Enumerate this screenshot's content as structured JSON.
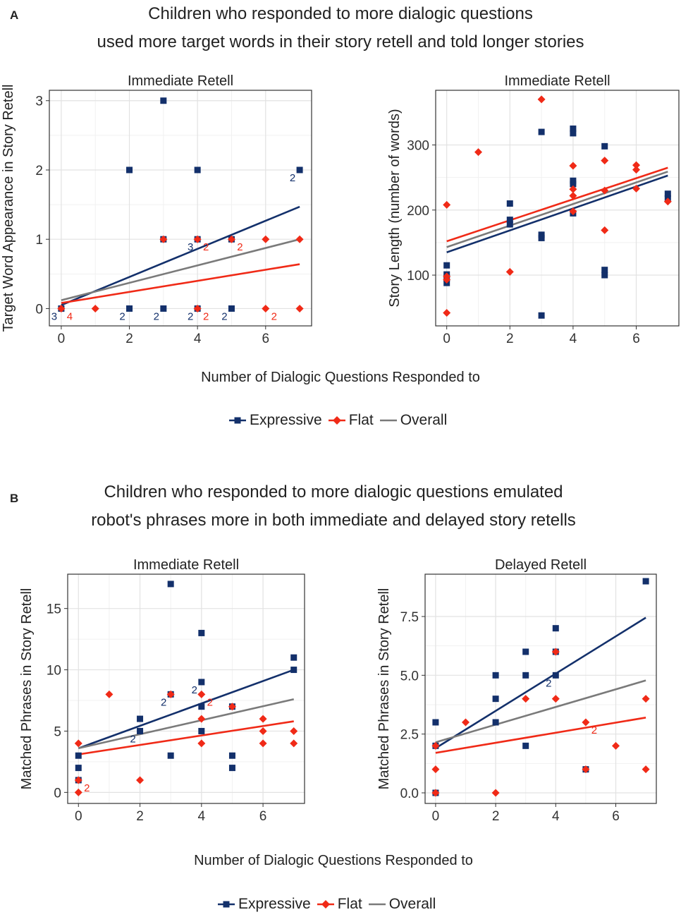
{
  "colors": {
    "expressive": "#13306b",
    "flat": "#f02a17",
    "overall": "#7a7a7a"
  },
  "panel_a": {
    "letter": "A",
    "title_line1": "Children who responded to more dialogic questions",
    "title_line2": "used more target words in their story retell and told longer stories",
    "xlabel": "Number of Dialogic Questions Responded to",
    "legend": {
      "expressive": "Expressive",
      "flat": "Flat",
      "overall": "Overall"
    }
  },
  "panel_b": {
    "letter": "B",
    "title_line1": "Children who responded to more dialogic questions emulated",
    "title_line2": "robot's phrases more in both immediate and delayed story retells",
    "xlabel": "Number of Dialogic Questions Responded to",
    "legend": {
      "expressive": "Expressive",
      "flat": "Flat",
      "overall": "Overall"
    }
  },
  "chart_data": [
    {
      "id": "a1",
      "type": "scatter",
      "title": "Immediate Retell",
      "xlabel": "",
      "ylabel": "Target Word Appearance in Story Retell",
      "xlim": [
        -0.35,
        7.35
      ],
      "ylim": [
        -0.25,
        3.15
      ],
      "xticks": [
        0,
        2,
        4,
        6
      ],
      "yticks": [
        0,
        1,
        2,
        3
      ],
      "series": [
        {
          "name": "Expressive",
          "points": [
            [
              0,
              0
            ],
            [
              2,
              0
            ],
            [
              2,
              2
            ],
            [
              3,
              3
            ],
            [
              3,
              0
            ],
            [
              3,
              1
            ],
            [
              4,
              2
            ],
            [
              4,
              1
            ],
            [
              4,
              0
            ],
            [
              5,
              1
            ],
            [
              5,
              0
            ],
            [
              7,
              2
            ]
          ]
        },
        {
          "name": "Flat",
          "points": [
            [
              0,
              0
            ],
            [
              1,
              0
            ],
            [
              3,
              1
            ],
            [
              4,
              1
            ],
            [
              4,
              0
            ],
            [
              5,
              1
            ],
            [
              6,
              1
            ],
            [
              6,
              0
            ],
            [
              7,
              1
            ],
            [
              7,
              0
            ]
          ]
        }
      ],
      "lines": [
        {
          "name": "Expressive",
          "x": [
            0,
            7
          ],
          "y": [
            0.05,
            1.47
          ]
        },
        {
          "name": "Flat",
          "x": [
            0,
            7
          ],
          "y": [
            0.08,
            0.64
          ]
        },
        {
          "name": "Overall",
          "x": [
            0,
            7
          ],
          "y": [
            0.12,
            1.0
          ]
        }
      ],
      "annotations": [
        {
          "x": 0,
          "y": 0,
          "text": "3",
          "series": "Expressive",
          "pos": "bl"
        },
        {
          "x": 0,
          "y": 0,
          "text": "4",
          "series": "Flat",
          "pos": "br"
        },
        {
          "x": 2,
          "y": 0,
          "text": "2",
          "series": "Expressive",
          "pos": "bl"
        },
        {
          "x": 3,
          "y": 0,
          "text": "2",
          "series": "Expressive",
          "pos": "bl"
        },
        {
          "x": 4,
          "y": 0,
          "text": "2",
          "series": "Expressive",
          "pos": "bl"
        },
        {
          "x": 4,
          "y": 0,
          "text": "2",
          "series": "Flat",
          "pos": "br"
        },
        {
          "x": 5,
          "y": 0,
          "text": "2",
          "series": "Expressive",
          "pos": "bl"
        },
        {
          "x": 6,
          "y": 0,
          "text": "2",
          "series": "Flat",
          "pos": "br"
        },
        {
          "x": 4,
          "y": 1,
          "text": "3",
          "series": "Expressive",
          "pos": "bl"
        },
        {
          "x": 4,
          "y": 1,
          "text": "2",
          "series": "Flat",
          "pos": "br"
        },
        {
          "x": 5,
          "y": 1,
          "text": "2",
          "series": "Flat",
          "pos": "br"
        },
        {
          "x": 7,
          "y": 2,
          "text": "2",
          "series": "Expressive",
          "pos": "bl"
        }
      ]
    },
    {
      "id": "a2",
      "type": "scatter",
      "title": "Immediate Retell",
      "xlabel": "",
      "ylabel": "Story Length (number of words)",
      "xlim": [
        -0.35,
        7.35
      ],
      "ylim": [
        22,
        384
      ],
      "xticks": [
        0,
        2,
        4,
        6
      ],
      "yticks": [
        100,
        200,
        300
      ],
      "series": [
        {
          "name": "Expressive",
          "points": [
            [
              0,
              115
            ],
            [
              0,
              101
            ],
            [
              0,
              95
            ],
            [
              0,
              88
            ],
            [
              2,
              210
            ],
            [
              2,
              185
            ],
            [
              2,
              178
            ],
            [
              3,
              320
            ],
            [
              3,
              162
            ],
            [
              3,
              157
            ],
            [
              3,
              38
            ],
            [
              4,
              325
            ],
            [
              4,
              318
            ],
            [
              4,
              245
            ],
            [
              4,
              240
            ],
            [
              4,
              195
            ],
            [
              5,
              298
            ],
            [
              5,
              108
            ],
            [
              5,
              100
            ],
            [
              7,
              225
            ],
            [
              7,
              218
            ]
          ]
        },
        {
          "name": "Flat",
          "points": [
            [
              0,
              208
            ],
            [
              0,
              98
            ],
            [
              0,
              93
            ],
            [
              0,
              42
            ],
            [
              1,
              289
            ],
            [
              2,
              105
            ],
            [
              3,
              370
            ],
            [
              4,
              268
            ],
            [
              4,
              232
            ],
            [
              4,
              222
            ],
            [
              4,
              198
            ],
            [
              5,
              276
            ],
            [
              5,
              230
            ],
            [
              5,
              169
            ],
            [
              6,
              269
            ],
            [
              6,
              262
            ],
            [
              6,
              233
            ],
            [
              7,
              213
            ]
          ]
        }
      ],
      "lines": [
        {
          "name": "Expressive",
          "x": [
            0,
            7
          ],
          "y": [
            135,
            253
          ]
        },
        {
          "name": "Flat",
          "x": [
            0,
            7
          ],
          "y": [
            152,
            265
          ]
        },
        {
          "name": "Overall",
          "x": [
            0,
            7
          ],
          "y": [
            143,
            259
          ]
        }
      ],
      "annotations": []
    },
    {
      "id": "b1",
      "type": "scatter",
      "title": "Immediate Retell",
      "xlabel": "",
      "ylabel": "Matched Phrases in Story Retell",
      "xlim": [
        -0.35,
        7.35
      ],
      "ylim": [
        -0.9,
        17.8
      ],
      "xticks": [
        0,
        2,
        4,
        6
      ],
      "yticks": [
        0,
        5,
        10,
        15
      ],
      "series": [
        {
          "name": "Expressive",
          "points": [
            [
              0,
              3
            ],
            [
              0,
              2
            ],
            [
              0,
              1
            ],
            [
              2,
              6
            ],
            [
              2,
              5
            ],
            [
              3,
              17
            ],
            [
              3,
              8
            ],
            [
              3,
              3
            ],
            [
              4,
              13
            ],
            [
              4,
              9
            ],
            [
              4,
              7
            ],
            [
              4,
              5
            ],
            [
              5,
              7
            ],
            [
              5,
              3
            ],
            [
              5,
              2
            ],
            [
              7,
              11
            ],
            [
              7,
              10
            ]
          ]
        },
        {
          "name": "Flat",
          "points": [
            [
              0,
              4
            ],
            [
              0,
              1
            ],
            [
              0,
              0
            ],
            [
              1,
              8
            ],
            [
              2,
              1
            ],
            [
              3,
              8
            ],
            [
              4,
              8
            ],
            [
              4,
              6
            ],
            [
              4,
              4
            ],
            [
              5,
              7
            ],
            [
              6,
              6
            ],
            [
              6,
              5
            ],
            [
              6,
              4
            ],
            [
              7,
              5
            ],
            [
              7,
              4
            ]
          ]
        }
      ],
      "lines": [
        {
          "name": "Expressive",
          "x": [
            0,
            7
          ],
          "y": [
            3.6,
            10.0
          ]
        },
        {
          "name": "Flat",
          "x": [
            0,
            7
          ],
          "y": [
            3.1,
            5.8
          ]
        },
        {
          "name": "Overall",
          "x": [
            0,
            7
          ],
          "y": [
            3.6,
            7.6
          ]
        }
      ],
      "annotations": [
        {
          "x": 0,
          "y": 1,
          "text": "2",
          "series": "Flat",
          "pos": "br"
        },
        {
          "x": 2,
          "y": 5,
          "text": "2",
          "series": "Expressive",
          "pos": "bl"
        },
        {
          "x": 3,
          "y": 8,
          "text": "2",
          "series": "Expressive",
          "pos": "bl"
        },
        {
          "x": 4,
          "y": 9,
          "text": "2",
          "series": "Expressive",
          "pos": "bl"
        },
        {
          "x": 4,
          "y": 8,
          "text": "2",
          "series": "Flat",
          "pos": "br"
        }
      ]
    },
    {
      "id": "b2",
      "type": "scatter",
      "title": "Delayed Retell",
      "xlabel": "",
      "ylabel": "Matched Phrases in Story Retell",
      "xlim": [
        -0.35,
        7.35
      ],
      "ylim": [
        -0.45,
        9.3
      ],
      "xticks": [
        0,
        2,
        4,
        6
      ],
      "yticks": [
        0,
        2.5,
        5,
        7.5
      ],
      "ytick_labels": [
        "0.0",
        "2.5",
        "5.0",
        "7.5"
      ],
      "series": [
        {
          "name": "Expressive",
          "points": [
            [
              0,
              3
            ],
            [
              0,
              2
            ],
            [
              0,
              0
            ],
            [
              2,
              5
            ],
            [
              2,
              4
            ],
            [
              2,
              3
            ],
            [
              3,
              6
            ],
            [
              3,
              5
            ],
            [
              3,
              2
            ],
            [
              4,
              7
            ],
            [
              4,
              6
            ],
            [
              4,
              5
            ],
            [
              5,
              1
            ],
            [
              7,
              9
            ]
          ]
        },
        {
          "name": "Flat",
          "points": [
            [
              0,
              2
            ],
            [
              0,
              1
            ],
            [
              0,
              0
            ],
            [
              1,
              3
            ],
            [
              2,
              0
            ],
            [
              3,
              4
            ],
            [
              4,
              6
            ],
            [
              4,
              4
            ],
            [
              5,
              3
            ],
            [
              5,
              1
            ],
            [
              6,
              2
            ],
            [
              7,
              4
            ],
            [
              7,
              1
            ]
          ]
        }
      ],
      "lines": [
        {
          "name": "Expressive",
          "x": [
            0,
            7
          ],
          "y": [
            1.9,
            7.45
          ]
        },
        {
          "name": "Flat",
          "x": [
            0,
            7
          ],
          "y": [
            1.7,
            3.2
          ]
        },
        {
          "name": "Overall",
          "x": [
            0,
            7
          ],
          "y": [
            2.15,
            4.78
          ]
        }
      ],
      "annotations": [
        {
          "x": 4,
          "y": 5,
          "text": "2",
          "series": "Expressive",
          "pos": "bl"
        },
        {
          "x": 5,
          "y": 3,
          "text": "2",
          "series": "Flat",
          "pos": "br"
        }
      ]
    }
  ]
}
